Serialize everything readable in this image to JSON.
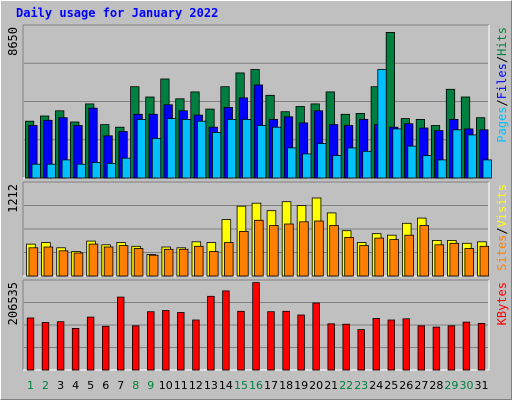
{
  "chart_data": {
    "type": "bar",
    "title": "Daily usage for January 2022",
    "days": [
      "1",
      "2",
      "3",
      "4",
      "5",
      "6",
      "7",
      "8",
      "9",
      "10",
      "11",
      "12",
      "13",
      "14",
      "15",
      "16",
      "17",
      "18",
      "19",
      "20",
      "21",
      "22",
      "23",
      "24",
      "25",
      "26",
      "27",
      "28",
      "29",
      "30",
      "31"
    ],
    "weekend_days": [
      "1",
      "2",
      "8",
      "9",
      "15",
      "16",
      "22",
      "23",
      "29",
      "30"
    ],
    "panels": [
      {
        "name": "top",
        "max_label": "8650",
        "ymax": 8650,
        "legend": [
          {
            "text": "Pages",
            "color": "#00c0ff"
          },
          {
            "text": "/",
            "color": "#000000"
          },
          {
            "text": "Files",
            "color": "#0000ff"
          },
          {
            "text": "/",
            "color": "#000000"
          },
          {
            "text": "Hits",
            "color": "#008040"
          }
        ],
        "series": [
          {
            "name": "Hits",
            "color": "#008040",
            "values": [
              3300,
              3600,
              3900,
              3250,
              4300,
              3100,
              2950,
              5300,
              4700,
              5750,
              4600,
              5000,
              4000,
              5300,
              6100,
              6300,
              4800,
              3850,
              4150,
              4300,
              5000,
              3700,
              3750,
              5300,
              8450,
              3450,
              3400,
              3050,
              5150,
              4700,
              3500
            ]
          },
          {
            "name": "Files",
            "color": "#0000ff",
            "values": [
              3050,
              3350,
              3500,
              3050,
              4050,
              2450,
              2700,
              3700,
              3700,
              4250,
              3900,
              3650,
              2950,
              4100,
              4650,
              5400,
              3400,
              3550,
              3200,
              3900,
              3100,
              3050,
              3400,
              3100,
              2950,
              3150,
              2900,
              2750,
              3400,
              2850,
              2800
            ]
          },
          {
            "name": "Pages",
            "color": "#00c0ff",
            "values": [
              800,
              800,
              1050,
              800,
              900,
              850,
              1150,
              3400,
              2300,
              3450,
              3400,
              3300,
              2650,
              3400,
              3400,
              3050,
              2950,
              1750,
              1400,
              2000,
              1300,
              1750,
              1550,
              6300,
              2850,
              1850,
              1300,
              1050,
              2800,
              2500,
              1050
            ]
          }
        ]
      },
      {
        "name": "middle",
        "max_label": "1212",
        "ymax": 1212,
        "legend": [
          {
            "text": "Sites",
            "color": "#ff8000"
          },
          {
            "text": "/",
            "color": "#000000"
          },
          {
            "text": "Visits",
            "color": "#ffff00"
          }
        ],
        "series": [
          {
            "name": "Visits",
            "color": "#ffff00",
            "values": [
              430,
              450,
              380,
              330,
              470,
              420,
              450,
              400,
              290,
              390,
              380,
              460,
              450,
              760,
              940,
              980,
              880,
              1000,
              950,
              1050,
              850,
              610,
              450,
              570,
              550,
              710,
              780,
              480,
              480,
              440,
              460
            ]
          },
          {
            "name": "Sites",
            "color": "#ff8000",
            "values": [
              380,
              390,
              340,
              310,
              430,
              390,
              410,
              370,
              280,
              360,
              360,
              400,
              330,
              450,
              600,
              750,
              680,
              700,
              730,
              740,
              680,
              520,
              410,
              510,
              490,
              550,
              680,
              420,
              440,
              370,
              400
            ]
          }
        ]
      },
      {
        "name": "bottom",
        "max_label": "206535",
        "ymax": 206535,
        "legend": [
          {
            "text": "KBytes",
            "color": "#ff0000"
          }
        ],
        "series": [
          {
            "name": "KBytes",
            "color": "#ff0000",
            "values": [
              125000,
              114000,
              116000,
              100000,
              127000,
              105000,
              175000,
              106000,
              140000,
              143000,
              138000,
              120000,
              177000,
              190000,
              141000,
              210000,
              140000,
              141000,
              132000,
              161000,
              111000,
              110000,
              97000,
              124000,
              120000,
              123000,
              106000,
              103000,
              106000,
              115000,
              112000
            ]
          }
        ]
      }
    ]
  }
}
